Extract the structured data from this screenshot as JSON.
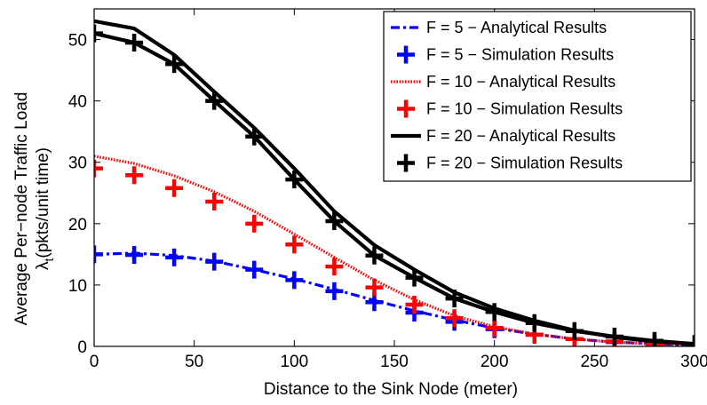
{
  "chart_data": {
    "type": "line",
    "xlabel": "Distance to the Sink Node (meter)",
    "ylabel_line1": "Average Per−node Traffic Load",
    "ylabel_symbol": "λ",
    "ylabel_subscript": "t",
    "ylabel_line2_rest": "(pkts/unit time)",
    "xlim": [
      0,
      300
    ],
    "ylim": [
      0,
      55
    ],
    "xticks": [
      "0",
      "50",
      "100",
      "150",
      "200",
      "250",
      "300"
    ],
    "yticks": [
      "0",
      "10",
      "20",
      "30",
      "40",
      "50"
    ],
    "legend_position": "top-right",
    "grid": false,
    "x": [
      0,
      20,
      40,
      60,
      80,
      100,
      120,
      140,
      160,
      180,
      200,
      220,
      240,
      260,
      280,
      300
    ],
    "series": [
      {
        "name": "F = 5 − Analytical Results",
        "style": "dashdot",
        "color": "#0000ff",
        "values": [
          15.0,
          15.2,
          14.8,
          13.9,
          12.5,
          11.0,
          9.3,
          7.5,
          5.8,
          4.3,
          3.0,
          2.0,
          1.2,
          0.7,
          0.4,
          0.2
        ]
      },
      {
        "name": "F = 5 − Simulation Results",
        "style": "plus",
        "color": "#0000ff",
        "values": [
          15.0,
          14.9,
          14.5,
          13.8,
          12.5,
          10.8,
          9.0,
          7.2,
          5.5,
          4.0,
          2.8,
          1.9,
          1.2,
          0.7,
          0.4,
          0.2
        ]
      },
      {
        "name": "F = 10 − Analytical Results",
        "style": "dotted",
        "color": "#ff0000",
        "values": [
          31.0,
          29.8,
          27.8,
          25.2,
          22.0,
          18.3,
          14.5,
          10.8,
          7.6,
          5.0,
          3.2,
          2.0,
          1.2,
          0.7,
          0.4,
          0.2
        ]
      },
      {
        "name": "F = 10 − Simulation Results",
        "style": "plus",
        "color": "#ff0000",
        "values": [
          29.0,
          27.9,
          25.8,
          23.6,
          20.0,
          16.6,
          13.0,
          9.6,
          6.8,
          4.6,
          3.0,
          1.9,
          1.2,
          0.8,
          0.4,
          0.2
        ]
      },
      {
        "name": "F = 20 − Analytical Results",
        "style": "solid",
        "color": "#000000",
        "values": [
          53.0,
          51.8,
          47.5,
          41.5,
          35.6,
          29.0,
          22.0,
          16.5,
          12.5,
          8.8,
          6.2,
          4.2,
          2.6,
          1.5,
          0.8,
          0.4
        ]
      },
      {
        "name": "F = 20 − Simulation Results",
        "style": "plus",
        "color": "#000000",
        "values": [
          51.0,
          49.5,
          46.0,
          40.0,
          34.2,
          27.2,
          20.4,
          14.8,
          11.2,
          7.8,
          5.6,
          3.8,
          2.5,
          1.6,
          0.9,
          0.4
        ]
      }
    ]
  }
}
